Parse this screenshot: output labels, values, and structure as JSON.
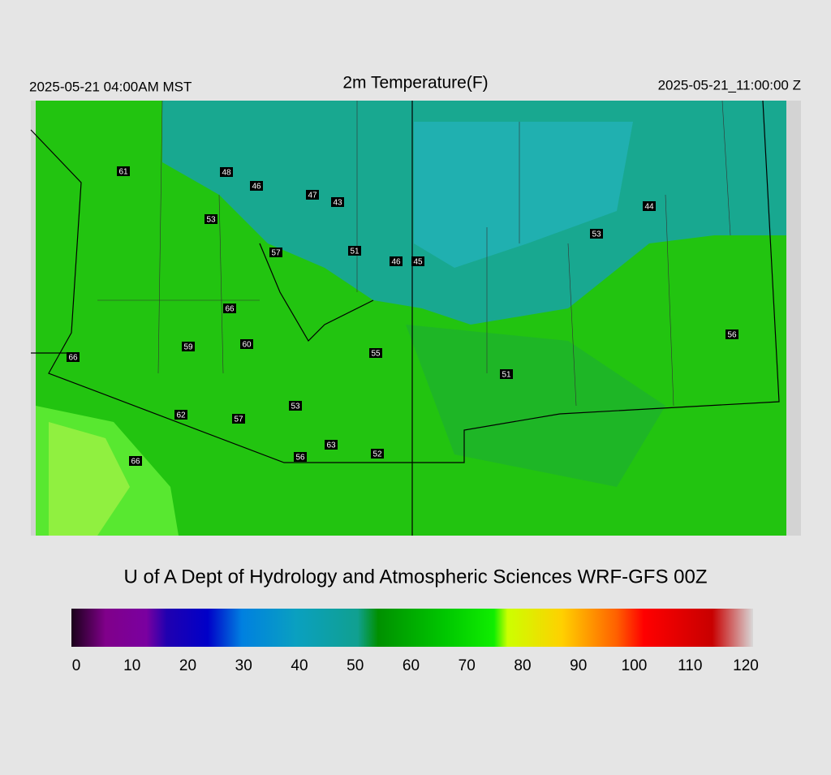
{
  "header": {
    "local_time": "2025-05-21 04:00AM MST",
    "title": "2m Temperature(F)",
    "valid_time": "2025-05-21_11:00:00 Z"
  },
  "stations": [
    61,
    48,
    46,
    47,
    43,
    53,
    57,
    51,
    46,
    45,
    44,
    53,
    66,
    59,
    60,
    55,
    56,
    66,
    51,
    53,
    62,
    57,
    63,
    56,
    52,
    66
  ],
  "credit": "U of A Dept of Hydrology and Atmospheric Sciences WRF-GFS 00Z",
  "colorbar": {
    "range": [
      0,
      120
    ],
    "ticks": [
      0,
      10,
      20,
      30,
      40,
      50,
      60,
      70,
      80,
      90,
      100,
      110,
      120
    ]
  }
}
